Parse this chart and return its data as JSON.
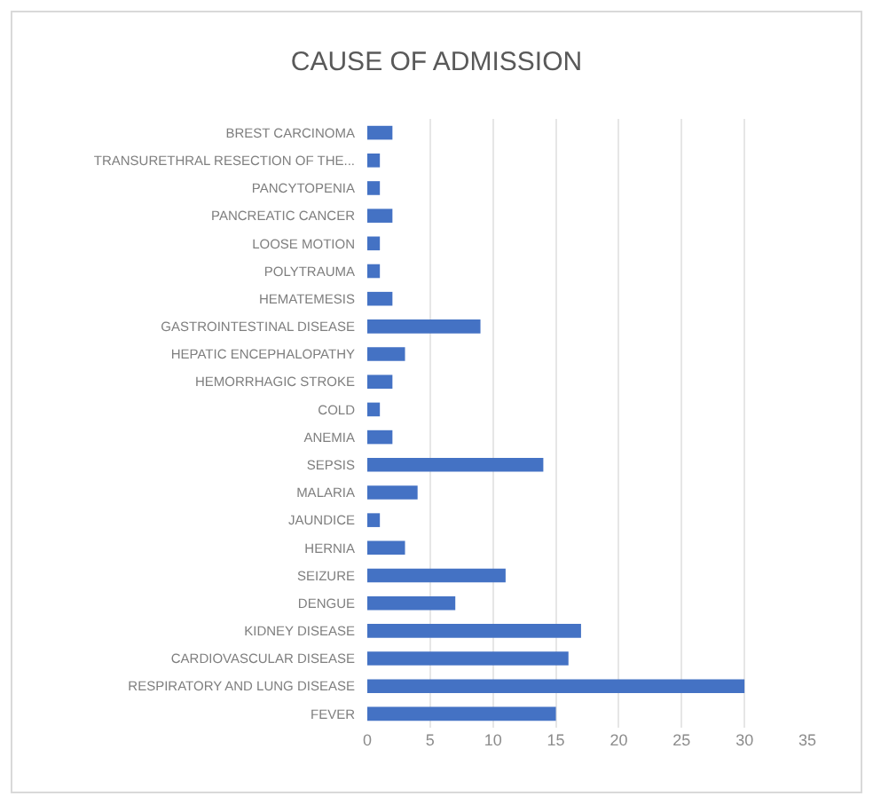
{
  "chart_data": {
    "type": "bar",
    "orientation": "horizontal",
    "title": "CAUSE OF ADMISSION",
    "categories": [
      "BREST CARCINOMA",
      "TRANSURETHRAL RESECTION OF THE...",
      "PANCYTOPENIA",
      "PANCREATIC CANCER",
      "LOOSE MOTION",
      "POLYTRAUMA",
      "HEMATEMESIS",
      "GASTROINTESTINAL DISEASE",
      "HEPATIC ENCEPHALOPATHY",
      "HEMORRHAGIC STROKE",
      "COLD",
      "ANEMIA",
      "SEPSIS",
      "MALARIA",
      "JAUNDICE",
      "HERNIA",
      "SEIZURE",
      "DENGUE",
      "KIDNEY DISEASE",
      "CARDIOVASCULAR DISEASE",
      "RESPIRATORY AND LUNG DISEASE",
      "FEVER"
    ],
    "values": [
      2,
      1,
      1,
      2,
      1,
      1,
      2,
      9,
      3,
      2,
      1,
      2,
      14,
      4,
      1,
      3,
      11,
      7,
      17,
      16,
      30,
      15
    ],
    "color": "#4472c4",
    "xlim": [
      0,
      35
    ],
    "xticks": [
      0,
      5,
      10,
      15,
      20,
      25,
      30,
      35
    ],
    "grid": "x"
  }
}
